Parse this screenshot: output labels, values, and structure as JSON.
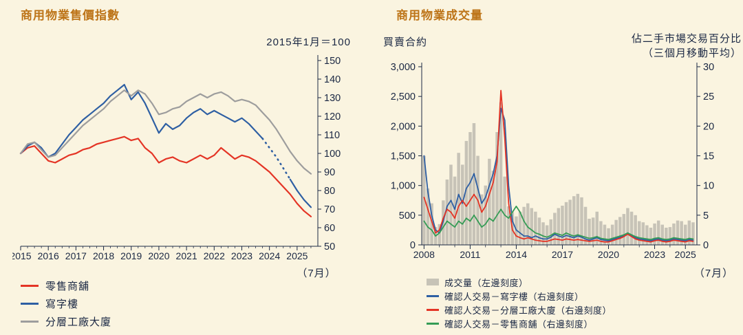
{
  "colors": {
    "background": "#FAF4E0",
    "title": "#BD7418",
    "text": "#1A2743",
    "axis": "#1A2743",
    "retail_red": "#E43425",
    "office_blue": "#2E5FA3",
    "factory_gray": "#9D9D9D",
    "retail_green": "#359C55",
    "bar_gray": "#C7C3B7"
  },
  "chart_data": [
    {
      "type": "line",
      "title": "商用物業售價指數",
      "top_note": "2015年1月＝100",
      "x_note": "（7月）",
      "x_range": [
        2015,
        2025.75
      ],
      "y_range": [
        50,
        150
      ],
      "y_ticks": [
        150,
        140,
        130,
        120,
        110,
        100,
        90,
        80,
        70,
        60,
        50
      ],
      "x_labels": [
        "2015",
        "2016",
        "2017",
        "2018",
        "2019",
        "2020",
        "2021",
        "2022",
        "2023",
        "2024",
        "2025"
      ],
      "y_axis_side": "right",
      "grid": false,
      "series": [
        {
          "name": "零售商舖",
          "color": "#E43425",
          "x_start": 2015.0,
          "x_step": 0.25,
          "values": [
            100,
            103,
            104,
            100,
            96,
            95,
            97,
            99,
            100,
            102,
            103,
            105,
            106,
            107,
            108,
            109,
            107,
            108,
            103,
            100,
            95,
            97,
            98,
            96,
            95,
            97,
            99,
            97,
            99,
            103,
            100,
            97,
            99,
            98,
            96,
            93,
            90,
            86,
            82,
            78,
            73,
            69,
            66
          ]
        },
        {
          "name": "寫字樓",
          "color": "#2E5FA3",
          "x_start": 2015.0,
          "x_step": 0.25,
          "dash_range": [
            2023.75,
            2024.75
          ],
          "values": [
            100,
            104,
            106,
            103,
            98,
            100,
            105,
            110,
            114,
            118,
            121,
            124,
            127,
            131,
            134,
            137,
            129,
            133,
            127,
            119,
            111,
            116,
            113,
            115,
            119,
            122,
            124,
            121,
            123,
            121,
            119,
            117,
            119,
            116,
            112,
            108,
            103,
            98,
            92,
            86,
            80,
            75,
            71
          ]
        },
        {
          "name": "分層工廠大廈",
          "color": "#9D9D9D",
          "x_start": 2015.0,
          "x_step": 0.25,
          "values": [
            100,
            105,
            106,
            102,
            98,
            99,
            103,
            107,
            111,
            115,
            118,
            121,
            124,
            128,
            131,
            134,
            131,
            134,
            132,
            127,
            121,
            122,
            124,
            125,
            128,
            130,
            132,
            130,
            132,
            133,
            131,
            128,
            129,
            128,
            126,
            122,
            118,
            113,
            107,
            101,
            96,
            92,
            89
          ]
        }
      ],
      "legend": [
        {
          "label": "零售商舖",
          "color": "#E43425",
          "marker": "line"
        },
        {
          "label": "寫字樓",
          "color": "#2E5FA3",
          "marker": "line"
        },
        {
          "label": "分層工廠大廈",
          "color": "#9D9D9D",
          "marker": "line"
        }
      ]
    },
    {
      "type": "bar+line",
      "title": "商用物業成交量",
      "left_axis_label": "買賣合約",
      "right_axis_label_1": "佔二手市場交易百分比",
      "right_axis_label_2": "（三個月移動平均）",
      "x_note": "（7月）",
      "x_range": [
        2007.85,
        2025.75
      ],
      "left_y": {
        "range": [
          0,
          3000
        ],
        "values": [
          3000,
          2500,
          2000,
          1500,
          1000,
          500,
          0
        ],
        "ticks": [
          "3,000",
          "2,500",
          "2,000",
          "1,500",
          "1,000",
          "500",
          "0"
        ]
      },
      "right_y": {
        "range": [
          0,
          30
        ],
        "values": [
          30,
          25,
          20,
          15,
          10,
          5,
          0
        ],
        "ticks": [
          "30",
          "25",
          "20",
          "15",
          "10",
          "5",
          "0"
        ]
      },
      "x_labels": [
        "2008",
        "2011",
        "2014",
        "2017",
        "2020",
        "2023",
        "2025"
      ],
      "grid": false,
      "bars": {
        "name": "成交量（左邊刻度）",
        "color": "#C7C3B7",
        "x_start": 2008.0,
        "x_step": 0.25,
        "values": [
          1500,
          950,
          700,
          300,
          350,
          750,
          1100,
          1350,
          1150,
          1550,
          1350,
          1750,
          1900,
          2050,
          1500,
          850,
          1000,
          1450,
          1250,
          1900,
          2400,
          1150,
          650,
          550,
          480,
          560,
          640,
          700,
          620,
          560,
          460,
          380,
          330,
          430,
          540,
          620,
          660,
          720,
          760,
          820,
          860,
          800,
          640,
          440,
          460,
          560,
          400,
          340,
          280,
          340,
          420,
          470,
          520,
          620,
          560,
          500,
          400,
          380,
          330,
          290,
          360,
          410,
          340,
          290,
          300,
          360,
          410,
          400,
          340,
          410,
          380
        ]
      },
      "series": [
        {
          "name": "確認人交易－寫字樓（右邊刻度）",
          "color": "#2E5FA3",
          "x_start": 2008.0,
          "x_step": 0.25,
          "values": [
            15,
            9,
            5,
            2.5,
            2,
            4,
            6.5,
            7.5,
            6,
            8.5,
            7,
            9.5,
            10.5,
            12,
            9.5,
            7,
            8,
            10,
            12,
            15,
            23,
            21,
            10,
            4,
            2.5,
            2,
            1.5,
            1.5,
            1.2,
            1.5,
            1.2,
            1,
            1,
            1.3,
            1.8,
            1.5,
            1.3,
            1.6,
            1.4,
            1.2,
            1.5,
            1.3,
            1,
            0.8,
            1,
            1.2,
            0.9,
            0.8,
            0.7,
            0.9,
            1.1,
            1.3,
            1.5,
            2,
            1.6,
            1.2,
            1,
            0.9,
            0.8,
            0.7,
            0.9,
            1,
            0.8,
            0.7,
            0.8,
            1,
            0.9,
            0.8,
            0.7,
            0.9,
            0.8
          ]
        },
        {
          "name": "確認人交易－分層工廠大廈（右邊刻度）",
          "color": "#E43425",
          "x_start": 2008.0,
          "x_step": 0.25,
          "values": [
            8,
            6,
            4,
            2,
            2.5,
            4.5,
            6,
            5.5,
            4.5,
            6.5,
            7.5,
            6.5,
            7.5,
            8.5,
            7.5,
            5.5,
            6.5,
            8.5,
            10.5,
            14,
            26,
            18,
            7,
            2.5,
            1.5,
            1.2,
            1,
            1.2,
            1,
            0.8,
            0.7,
            0.6,
            0.6,
            0.8,
            1,
            0.9,
            0.8,
            1,
            0.9,
            0.8,
            0.9,
            0.8,
            0.7,
            0.6,
            0.7,
            0.8,
            0.6,
            0.5,
            0.5,
            0.7,
            0.9,
            1.1,
            1.4,
            1.8,
            1.4,
            1,
            0.8,
            0.7,
            0.6,
            0.5,
            0.7,
            0.8,
            0.6,
            0.5,
            0.6,
            0.8,
            0.7,
            0.6,
            0.5,
            0.7,
            0.6
          ]
        },
        {
          "name": "確認人交易－零售商舖（右邊刻度）",
          "color": "#359C55",
          "x_start": 2008.0,
          "x_step": 0.25,
          "values": [
            4,
            3,
            2.5,
            1.5,
            2,
            3,
            4,
            3.5,
            3,
            4,
            3.5,
            4.5,
            4,
            5,
            4,
            3,
            3.5,
            4.5,
            4,
            5,
            6,
            5,
            4.5,
            5.5,
            6.5,
            5.5,
            4,
            3,
            2.5,
            2,
            1.8,
            1.5,
            1.3,
            1.6,
            2,
            1.8,
            1.6,
            2,
            1.7,
            1.5,
            1.7,
            1.5,
            1.3,
            1.1,
            1.2,
            1.4,
            1.1,
            1,
            0.9,
            1.1,
            1.3,
            1.5,
            1.7,
            2,
            1.7,
            1.4,
            1.2,
            1.1,
            1,
            0.9,
            1.1,
            1.2,
            1,
            0.9,
            1,
            1.2,
            1.1,
            1,
            0.9,
            1.1,
            1
          ]
        }
      ],
      "legend": [
        {
          "label": "成交量（左邊刻度）",
          "color": "#C7C3B7",
          "marker": "rect"
        },
        {
          "label": "確認人交易－寫字樓（右邊刻度）",
          "color": "#2E5FA3",
          "marker": "line"
        },
        {
          "label": "確認人交易－分層工廠大廈（右邊刻度）",
          "color": "#E43425",
          "marker": "line"
        },
        {
          "label": "確認人交易－零售商舖（右邊刻度）",
          "color": "#359C55",
          "marker": "line"
        }
      ]
    }
  ]
}
